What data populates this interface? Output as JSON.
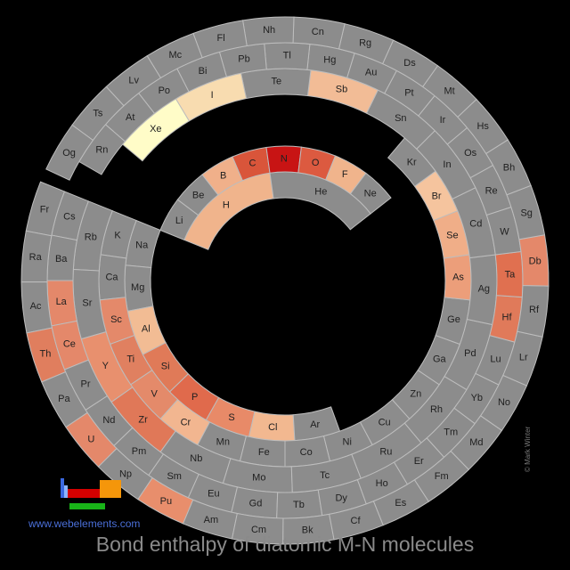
{
  "title": "Bond enthalpy of diatomic M-N molecules",
  "website": "www.webelements.com",
  "credit": "© Mark Winter",
  "logo_icon": "webelements-periodic-logo-icon",
  "colors": {
    "gray": "#8c8c8c",
    "border": "#bdbdbd",
    "text": "#202020",
    "background": "#000000"
  },
  "elements": [
    {
      "s": "H",
      "c": "#f0b48c"
    },
    {
      "s": "He",
      "c": "#8c8c8c"
    },
    {
      "s": "Li",
      "c": "#8c8c8c"
    },
    {
      "s": "Be",
      "c": "#8c8c8c"
    },
    {
      "s": "B",
      "c": "#f0b08a"
    },
    {
      "s": "C",
      "c": "#d9553a"
    },
    {
      "s": "N",
      "c": "#c81414"
    },
    {
      "s": "O",
      "c": "#dc5a40"
    },
    {
      "s": "F",
      "c": "#f0b48c"
    },
    {
      "s": "Ne",
      "c": "#8c8c8c"
    },
    {
      "s": "Na",
      "c": "#8c8c8c"
    },
    {
      "s": "Mg",
      "c": "#8c8c8c"
    },
    {
      "s": "Al",
      "c": "#f2bc94"
    },
    {
      "s": "Si",
      "c": "#e07a58"
    },
    {
      "s": "P",
      "c": "#e06a4c"
    },
    {
      "s": "S",
      "c": "#e88a68"
    },
    {
      "s": "Cl",
      "c": "#f2b890"
    },
    {
      "s": "Ar",
      "c": "#8c8c8c"
    },
    {
      "s": "K",
      "c": "#8c8c8c"
    },
    {
      "s": "Ca",
      "c": "#8c8c8c"
    },
    {
      "s": "Sc",
      "c": "#e4896a"
    },
    {
      "s": "Ti",
      "c": "#e08060"
    },
    {
      "s": "V",
      "c": "#e48a6a"
    },
    {
      "s": "Cr",
      "c": "#f2b690"
    },
    {
      "s": "Mn",
      "c": "#8c8c8c"
    },
    {
      "s": "Fe",
      "c": "#8c8c8c"
    },
    {
      "s": "Co",
      "c": "#8c8c8c"
    },
    {
      "s": "Ni",
      "c": "#8c8c8c"
    },
    {
      "s": "Cu",
      "c": "#8c8c8c"
    },
    {
      "s": "Zn",
      "c": "#8c8c8c"
    },
    {
      "s": "Ga",
      "c": "#8c8c8c"
    },
    {
      "s": "Ge",
      "c": "#8c8c8c"
    },
    {
      "s": "As",
      "c": "#ec9e7a"
    },
    {
      "s": "Se",
      "c": "#f0ae88"
    },
    {
      "s": "Br",
      "c": "#f5c49e"
    },
    {
      "s": "Kr",
      "c": "#8c8c8c"
    },
    {
      "s": "Rb",
      "c": "#8c8c8c"
    },
    {
      "s": "Sr",
      "c": "#8c8c8c"
    },
    {
      "s": "Y",
      "c": "#e8906e"
    },
    {
      "s": "Zr",
      "c": "#e07858"
    },
    {
      "s": "Nb",
      "c": "#8c8c8c"
    },
    {
      "s": "Mo",
      "c": "#8c8c8c"
    },
    {
      "s": "Tc",
      "c": "#8c8c8c"
    },
    {
      "s": "Ru",
      "c": "#8c8c8c"
    },
    {
      "s": "Rh",
      "c": "#8c8c8c"
    },
    {
      "s": "Pd",
      "c": "#8c8c8c"
    },
    {
      "s": "Ag",
      "c": "#8c8c8c"
    },
    {
      "s": "Cd",
      "c": "#8c8c8c"
    },
    {
      "s": "In",
      "c": "#8c8c8c"
    },
    {
      "s": "Sn",
      "c": "#8c8c8c"
    },
    {
      "s": "Sb",
      "c": "#f2bc96"
    },
    {
      "s": "Te",
      "c": "#8c8c8c"
    },
    {
      "s": "I",
      "c": "#f8dcb0"
    },
    {
      "s": "Xe",
      "c": "#fffcc8"
    },
    {
      "s": "Cs",
      "c": "#8c8c8c"
    },
    {
      "s": "Ba",
      "c": "#8c8c8c"
    },
    {
      "s": "La",
      "c": "#e4886a"
    },
    {
      "s": "Ce",
      "c": "#e4886a"
    },
    {
      "s": "Pr",
      "c": "#8c8c8c"
    },
    {
      "s": "Nd",
      "c": "#8c8c8c"
    },
    {
      "s": "Pm",
      "c": "#8c8c8c"
    },
    {
      "s": "Sm",
      "c": "#8c8c8c"
    },
    {
      "s": "Eu",
      "c": "#8c8c8c"
    },
    {
      "s": "Gd",
      "c": "#8c8c8c"
    },
    {
      "s": "Tb",
      "c": "#8c8c8c"
    },
    {
      "s": "Dy",
      "c": "#8c8c8c"
    },
    {
      "s": "Ho",
      "c": "#8c8c8c"
    },
    {
      "s": "Er",
      "c": "#8c8c8c"
    },
    {
      "s": "Tm",
      "c": "#8c8c8c"
    },
    {
      "s": "Yb",
      "c": "#8c8c8c"
    },
    {
      "s": "Lu",
      "c": "#8c8c8c"
    },
    {
      "s": "Hf",
      "c": "#e07a5a"
    },
    {
      "s": "Ta",
      "c": "#e07050"
    },
    {
      "s": "W",
      "c": "#8c8c8c"
    },
    {
      "s": "Re",
      "c": "#8c8c8c"
    },
    {
      "s": "Os",
      "c": "#8c8c8c"
    },
    {
      "s": "Ir",
      "c": "#8c8c8c"
    },
    {
      "s": "Pt",
      "c": "#8c8c8c"
    },
    {
      "s": "Au",
      "c": "#8c8c8c"
    },
    {
      "s": "Hg",
      "c": "#8c8c8c"
    },
    {
      "s": "Tl",
      "c": "#8c8c8c"
    },
    {
      "s": "Pb",
      "c": "#8c8c8c"
    },
    {
      "s": "Bi",
      "c": "#8c8c8c"
    },
    {
      "s": "Po",
      "c": "#8c8c8c"
    },
    {
      "s": "At",
      "c": "#8c8c8c"
    },
    {
      "s": "Rn",
      "c": "#8c8c8c"
    },
    {
      "s": "Fr",
      "c": "#8c8c8c"
    },
    {
      "s": "Ra",
      "c": "#8c8c8c"
    },
    {
      "s": "Ac",
      "c": "#8c8c8c"
    },
    {
      "s": "Th",
      "c": "#e07e5e"
    },
    {
      "s": "Pa",
      "c": "#8c8c8c"
    },
    {
      "s": "U",
      "c": "#e4886a"
    },
    {
      "s": "Np",
      "c": "#8c8c8c"
    },
    {
      "s": "Pu",
      "c": "#e88e6c"
    },
    {
      "s": "Am",
      "c": "#8c8c8c"
    },
    {
      "s": "Cm",
      "c": "#8c8c8c"
    },
    {
      "s": "Bk",
      "c": "#8c8c8c"
    },
    {
      "s": "Cf",
      "c": "#8c8c8c"
    },
    {
      "s": "Es",
      "c": "#8c8c8c"
    },
    {
      "s": "Fm",
      "c": "#8c8c8c"
    },
    {
      "s": "Md",
      "c": "#8c8c8c"
    },
    {
      "s": "No",
      "c": "#8c8c8c"
    },
    {
      "s": "Lr",
      "c": "#8c8c8c"
    },
    {
      "s": "Rf",
      "c": "#8c8c8c"
    },
    {
      "s": "Db",
      "c": "#e4886a"
    },
    {
      "s": "Sg",
      "c": "#8c8c8c"
    },
    {
      "s": "Bh",
      "c": "#8c8c8c"
    },
    {
      "s": "Hs",
      "c": "#8c8c8c"
    },
    {
      "s": "Mt",
      "c": "#8c8c8c"
    },
    {
      "s": "Ds",
      "c": "#8c8c8c"
    },
    {
      "s": "Rg",
      "c": "#8c8c8c"
    },
    {
      "s": "Cn",
      "c": "#8c8c8c"
    },
    {
      "s": "Nh",
      "c": "#8c8c8c"
    },
    {
      "s": "Fl",
      "c": "#8c8c8c"
    },
    {
      "s": "Mc",
      "c": "#8c8c8c"
    },
    {
      "s": "Lv",
      "c": "#8c8c8c"
    },
    {
      "s": "Ts",
      "c": "#8c8c8c"
    },
    {
      "s": "Og",
      "c": "#8c8c8c"
    }
  ]
}
